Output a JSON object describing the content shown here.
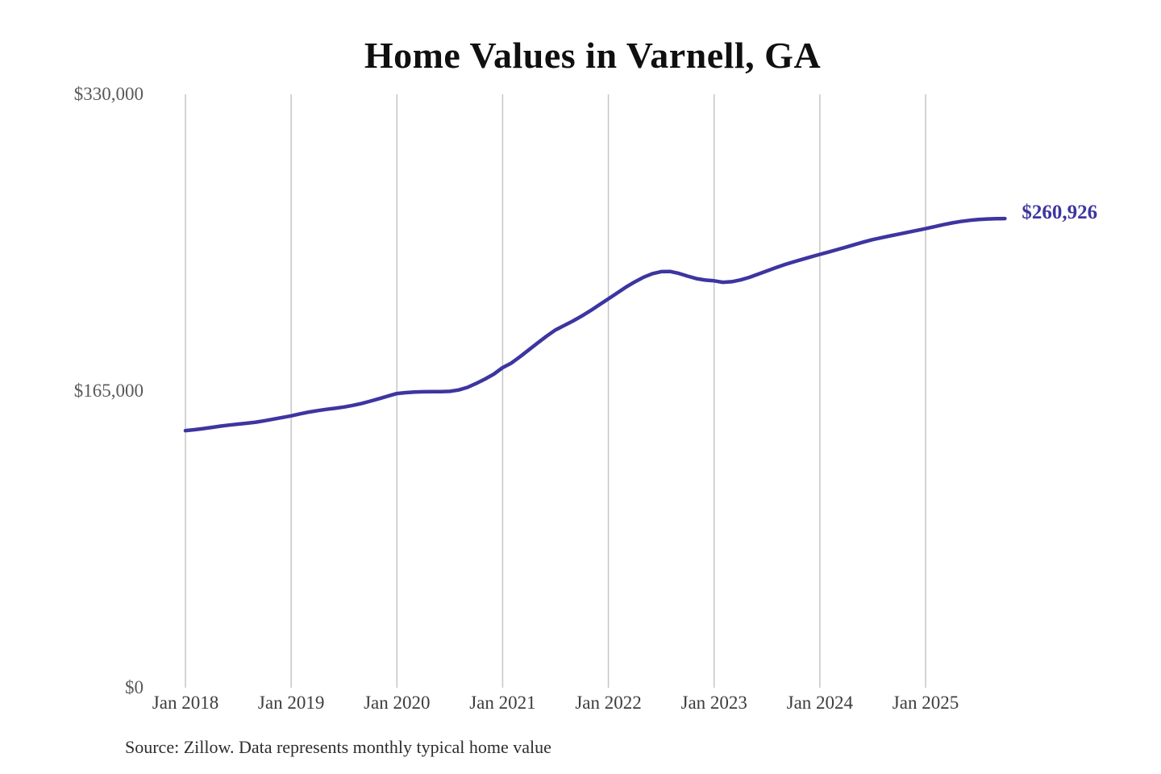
{
  "title": "Home Values in Varnell, GA",
  "end_label": "$260,926",
  "source_note": "Source: Zillow. Data represents monthly typical home value",
  "colors": {
    "line": "#3d35a0",
    "grid": "#c6c6c6",
    "title_text": "#101010",
    "y_axis_text": "#595959",
    "x_axis_text": "#3d3d3d",
    "source_text": "#2d2d2d",
    "background": "#ffffff"
  },
  "chart_data": {
    "type": "line",
    "title": "Home Values in Varnell, GA",
    "xlabel": "",
    "ylabel": "",
    "ylim": [
      0,
      330000
    ],
    "y_ticks": [
      0,
      165000,
      330000
    ],
    "y_tick_labels": [
      "$0",
      "$165,000",
      "$330,000"
    ],
    "x_tick_labels": [
      "Jan 2018",
      "Jan 2019",
      "Jan 2020",
      "Jan 2021",
      "Jan 2022",
      "Jan 2023",
      "Jan 2024",
      "Jan 2025"
    ],
    "grid": "vertical-only",
    "legend": "none",
    "annotation": {
      "text": "$260,926",
      "position": "line-end"
    },
    "series": [
      {
        "name": "Monthly typical home value",
        "start_month": "Jan 2018",
        "end_month": "Oct 2025",
        "final_value": 260926,
        "values": [
          143000,
          143500,
          144100,
          144800,
          145500,
          146100,
          146600,
          147100,
          147700,
          148500,
          149400,
          150300,
          151200,
          152300,
          153300,
          154100,
          154800,
          155400,
          156100,
          157000,
          158100,
          159400,
          160800,
          162200,
          163600,
          164100,
          164400,
          164600,
          164700,
          164700,
          164800,
          165600,
          167000,
          169200,
          171700,
          174400,
          178000,
          180600,
          184200,
          188000,
          191800,
          195600,
          199000,
          201500,
          204000,
          206800,
          209800,
          213000,
          216300,
          219500,
          222800,
          225700,
          228300,
          230300,
          231400,
          231500,
          230400,
          228900,
          227500,
          226700,
          226300,
          225500,
          225800,
          226800,
          228200,
          230000,
          231800,
          233600,
          235300,
          236800,
          238200,
          239600,
          241000,
          242300,
          243700,
          245100,
          246500,
          247900,
          249200,
          250300,
          251300,
          252300,
          253300,
          254300,
          255300,
          256400,
          257500,
          258500,
          259300,
          259900,
          260400,
          260700,
          260850,
          260926
        ]
      }
    ]
  }
}
